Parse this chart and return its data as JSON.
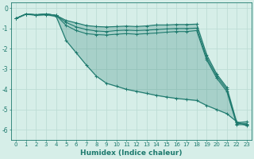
{
  "xlabel": "Humidex (Indice chaleur)",
  "xlim": [
    -0.5,
    23.5
  ],
  "ylim": [
    -6.5,
    0.3
  ],
  "yticks": [
    0,
    -1,
    -2,
    -3,
    -4,
    -5,
    -6
  ],
  "xticks": [
    0,
    1,
    2,
    3,
    4,
    5,
    6,
    7,
    8,
    9,
    10,
    11,
    12,
    13,
    14,
    15,
    16,
    17,
    18,
    19,
    20,
    21,
    22,
    23
  ],
  "bg_color": "#d6eee8",
  "grid_color": "#bdddd5",
  "line_color": "#1e7a6e",
  "line1": [
    -0.5,
    -0.28,
    -0.32,
    -0.28,
    -0.35,
    -0.6,
    -0.72,
    -0.85,
    -0.9,
    -0.92,
    -0.9,
    -0.88,
    -0.9,
    -0.87,
    -0.82,
    -0.82,
    -0.8,
    -0.8,
    -0.78,
    -2.3,
    -3.25,
    -3.9,
    -5.65,
    -5.6
  ],
  "line2": [
    -0.5,
    -0.28,
    -0.32,
    -0.28,
    -0.35,
    -0.7,
    -0.92,
    -1.05,
    -1.12,
    -1.15,
    -1.1,
    -1.08,
    -1.1,
    -1.08,
    -1.05,
    -1.02,
    -1.0,
    -1.0,
    -0.98,
    -2.45,
    -3.35,
    -4.0,
    -5.7,
    -5.7
  ],
  "line3": [
    -0.5,
    -0.28,
    -0.32,
    -0.28,
    -0.35,
    -0.85,
    -1.1,
    -1.25,
    -1.3,
    -1.32,
    -1.28,
    -1.25,
    -1.28,
    -1.25,
    -1.22,
    -1.18,
    -1.15,
    -1.15,
    -1.1,
    -2.55,
    -3.45,
    -4.1,
    -5.75,
    -5.75
  ],
  "line4": [
    -0.5,
    -0.28,
    -0.35,
    -0.32,
    -0.4,
    -1.6,
    -2.2,
    -2.8,
    -3.35,
    -3.7,
    -3.85,
    -4.0,
    -4.1,
    -4.2,
    -4.3,
    -4.38,
    -4.45,
    -4.5,
    -4.55,
    -4.8,
    -5.0,
    -5.2,
    -5.6,
    -5.8
  ],
  "fill_alpha": 0.25
}
